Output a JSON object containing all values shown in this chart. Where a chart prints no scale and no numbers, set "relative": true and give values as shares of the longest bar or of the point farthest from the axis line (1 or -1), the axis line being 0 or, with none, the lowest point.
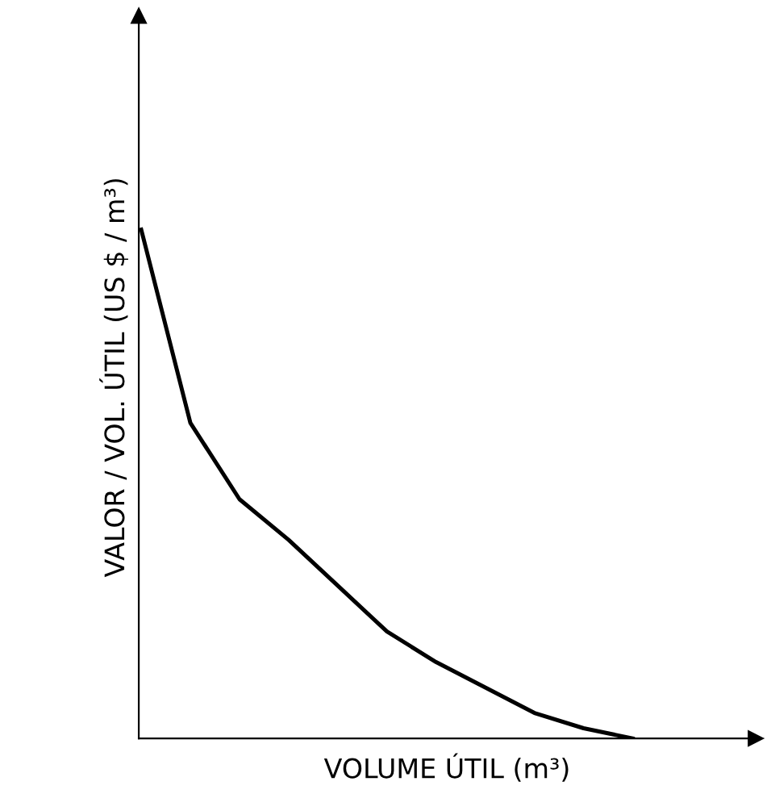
{
  "chart_data": {
    "type": "line",
    "relative": true,
    "xlabel": "VOLUME ÚTIL (m³)",
    "ylabel": "VALOR / VOL. ÚTIL (US $ / m³)",
    "categories": [
      null,
      null,
      null,
      null,
      null,
      null,
      null,
      null,
      null,
      null,
      null
    ],
    "series": [
      {
        "color": "#000000",
        "values": [
          1,
          0.62,
          0.47,
          0.39,
          0.3,
          0.21,
          0.15,
          0.1,
          0.05,
          0.02,
          0
        ]
      }
    ],
    "marker": "none",
    "line_style": "solid",
    "grid": false,
    "legend": false
  }
}
